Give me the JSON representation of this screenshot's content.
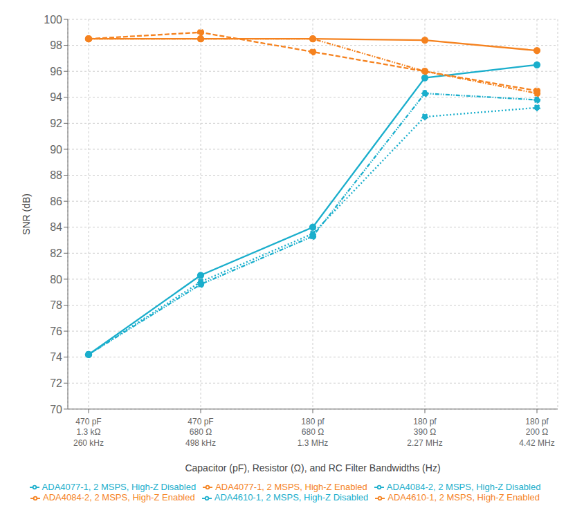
{
  "chart_data": {
    "type": "line",
    "xlabel": "Capacitor (pF), Resistor (Ω), and RC Filter Bandwidths (Hz)",
    "ylabel": "SNR (dB)",
    "categories": [
      "470 pF\n1.3 kΩ\n260 kHz",
      "470 pF\n680 Ω\n498 kHz",
      "180 pf\n680 Ω\n1.3 MHz",
      "180 pf\n390 Ω\n2.27 MHz",
      "180 pf\n200 Ω\n4.42 MHz"
    ],
    "series": [
      {
        "name": "ADA4077-1, 2 MSPS, High-Z Disabled",
        "color": "#1AAECC",
        "line_style": "solid",
        "marker": "circle",
        "values": [
          74.2,
          80.3,
          84.0,
          95.5,
          96.5
        ]
      },
      {
        "name": "ADA4077-1, 2 MSPS, High-Z Enabled",
        "color": "#F5821F",
        "line_style": "solid",
        "marker": "circle",
        "values": [
          98.5,
          98.5,
          98.5,
          98.4,
          97.6
        ]
      },
      {
        "name": "ADA4610-1, 2 MSPS, High-Z Disabled",
        "color": "#1AAECC",
        "line_style": "dotted",
        "marker": "circle",
        "values": [
          74.2,
          79.8,
          83.5,
          92.5,
          93.2
        ]
      },
      {
        "name": "ADA4610-1, 2 MSPS, High-Z Enabled",
        "color": "#F5821F",
        "line_style": "dashed",
        "marker": "circle",
        "values": [
          98.5,
          99.0,
          97.5,
          96.0,
          94.5
        ]
      },
      {
        "name": "ADA4084-2, 2 MSPS, High-Z Disabled",
        "color": "#1AAECC",
        "line_style": "dashdot_dotted",
        "marker": "circle",
        "values": [
          74.2,
          79.6,
          83.3,
          94.3,
          93.8
        ]
      },
      {
        "name": "ADA4084-2, 2 MSPS, High-Z Enabled",
        "color": "#F5821F",
        "line_style": "dashdot_dotted",
        "marker": "circle",
        "values": [
          98.5,
          98.5,
          98.5,
          96.0,
          94.3
        ]
      }
    ],
    "ylim": [
      70,
      100
    ],
    "yticks": [
      70,
      72,
      74,
      76,
      78,
      80,
      82,
      84,
      86,
      88,
      90,
      92,
      94,
      96,
      98,
      100
    ],
    "grid": true,
    "legend": "bottom"
  }
}
